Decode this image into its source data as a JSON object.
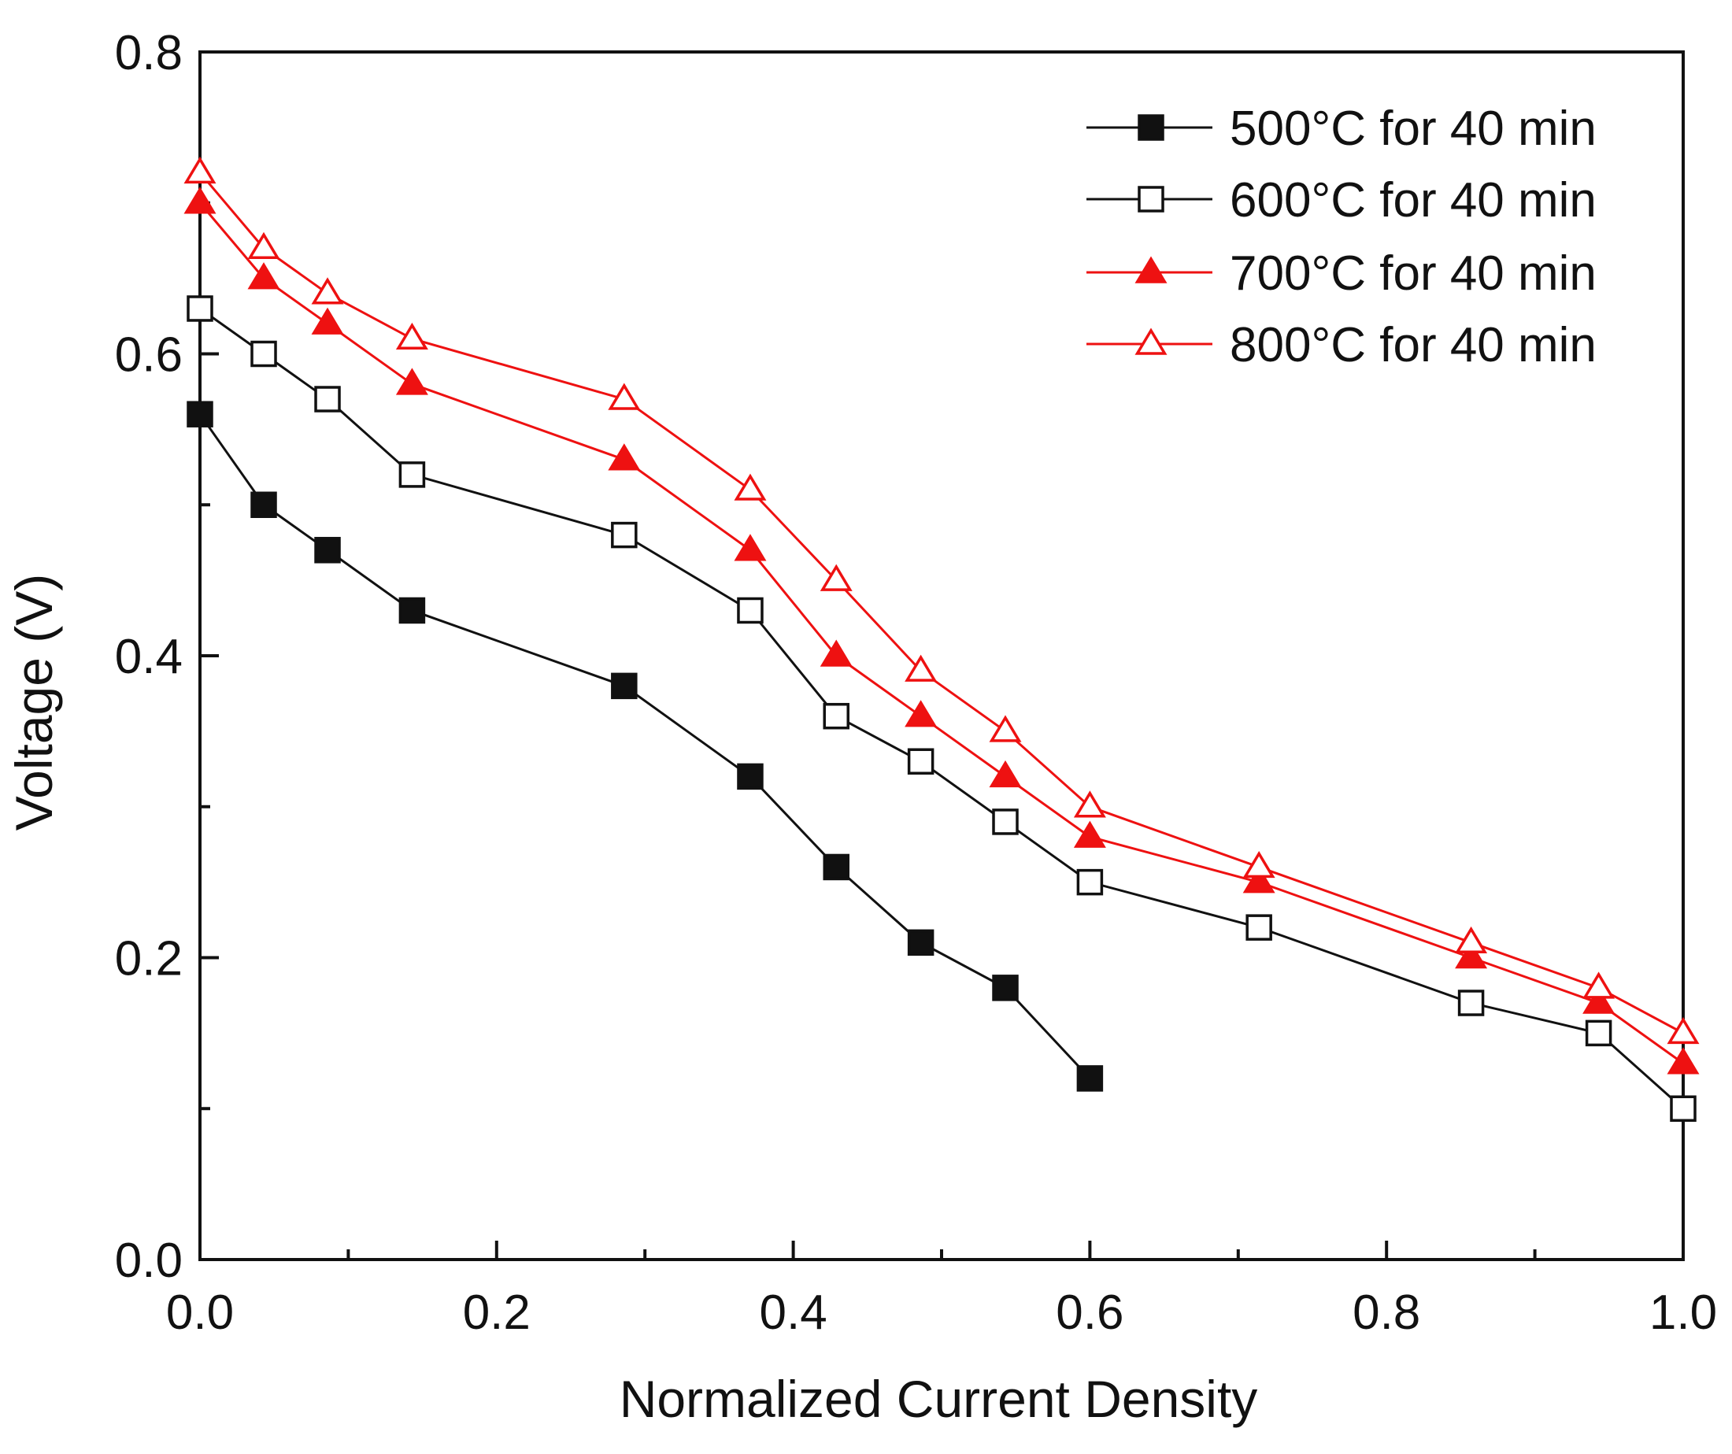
{
  "chart_data": {
    "type": "line",
    "title": "",
    "xlabel": "Normalized Current Density",
    "ylabel": "Voltage (V)",
    "xlim": [
      0.0,
      1.0
    ],
    "ylim": [
      0.0,
      0.8
    ],
    "xticks": [
      "0.0",
      "0.2",
      "0.4",
      "0.6",
      "0.8",
      "1.0"
    ],
    "yticks": [
      "0.0",
      "0.2",
      "0.4",
      "0.6",
      "0.8"
    ],
    "grid": false,
    "legend_position": "top-right",
    "series": [
      {
        "name": "500°C for 40 min",
        "marker": "square",
        "filled": true,
        "color": "#111111",
        "x": [
          0.0,
          0.043,
          0.086,
          0.143,
          0.286,
          0.371,
          0.429,
          0.486,
          0.543,
          0.6
        ],
        "y": [
          0.56,
          0.5,
          0.47,
          0.43,
          0.38,
          0.32,
          0.26,
          0.21,
          0.18,
          0.12
        ]
      },
      {
        "name": "600°C for 40 min",
        "marker": "square",
        "filled": false,
        "color": "#111111",
        "x": [
          0.0,
          0.043,
          0.086,
          0.143,
          0.286,
          0.371,
          0.429,
          0.486,
          0.543,
          0.6,
          0.714,
          0.857,
          0.943,
          1.0
        ],
        "y": [
          0.63,
          0.6,
          0.57,
          0.52,
          0.48,
          0.43,
          0.36,
          0.33,
          0.29,
          0.25,
          0.22,
          0.17,
          0.15,
          0.1
        ]
      },
      {
        "name": "700°C for 40 min",
        "marker": "triangle",
        "filled": true,
        "color": "#ee1111",
        "x": [
          0.0,
          0.043,
          0.086,
          0.143,
          0.286,
          0.371,
          0.429,
          0.486,
          0.543,
          0.6,
          0.714,
          0.857,
          0.943,
          1.0
        ],
        "y": [
          0.7,
          0.65,
          0.62,
          0.58,
          0.53,
          0.47,
          0.4,
          0.36,
          0.32,
          0.28,
          0.25,
          0.2,
          0.17,
          0.13
        ]
      },
      {
        "name": "800°C for 40 min",
        "marker": "triangle",
        "filled": false,
        "color": "#ee1111",
        "x": [
          0.0,
          0.043,
          0.086,
          0.143,
          0.286,
          0.371,
          0.429,
          0.486,
          0.543,
          0.6,
          0.714,
          0.857,
          0.943,
          1.0
        ],
        "y": [
          0.72,
          0.67,
          0.64,
          0.61,
          0.57,
          0.51,
          0.45,
          0.39,
          0.35,
          0.3,
          0.26,
          0.21,
          0.18,
          0.15
        ]
      }
    ]
  }
}
